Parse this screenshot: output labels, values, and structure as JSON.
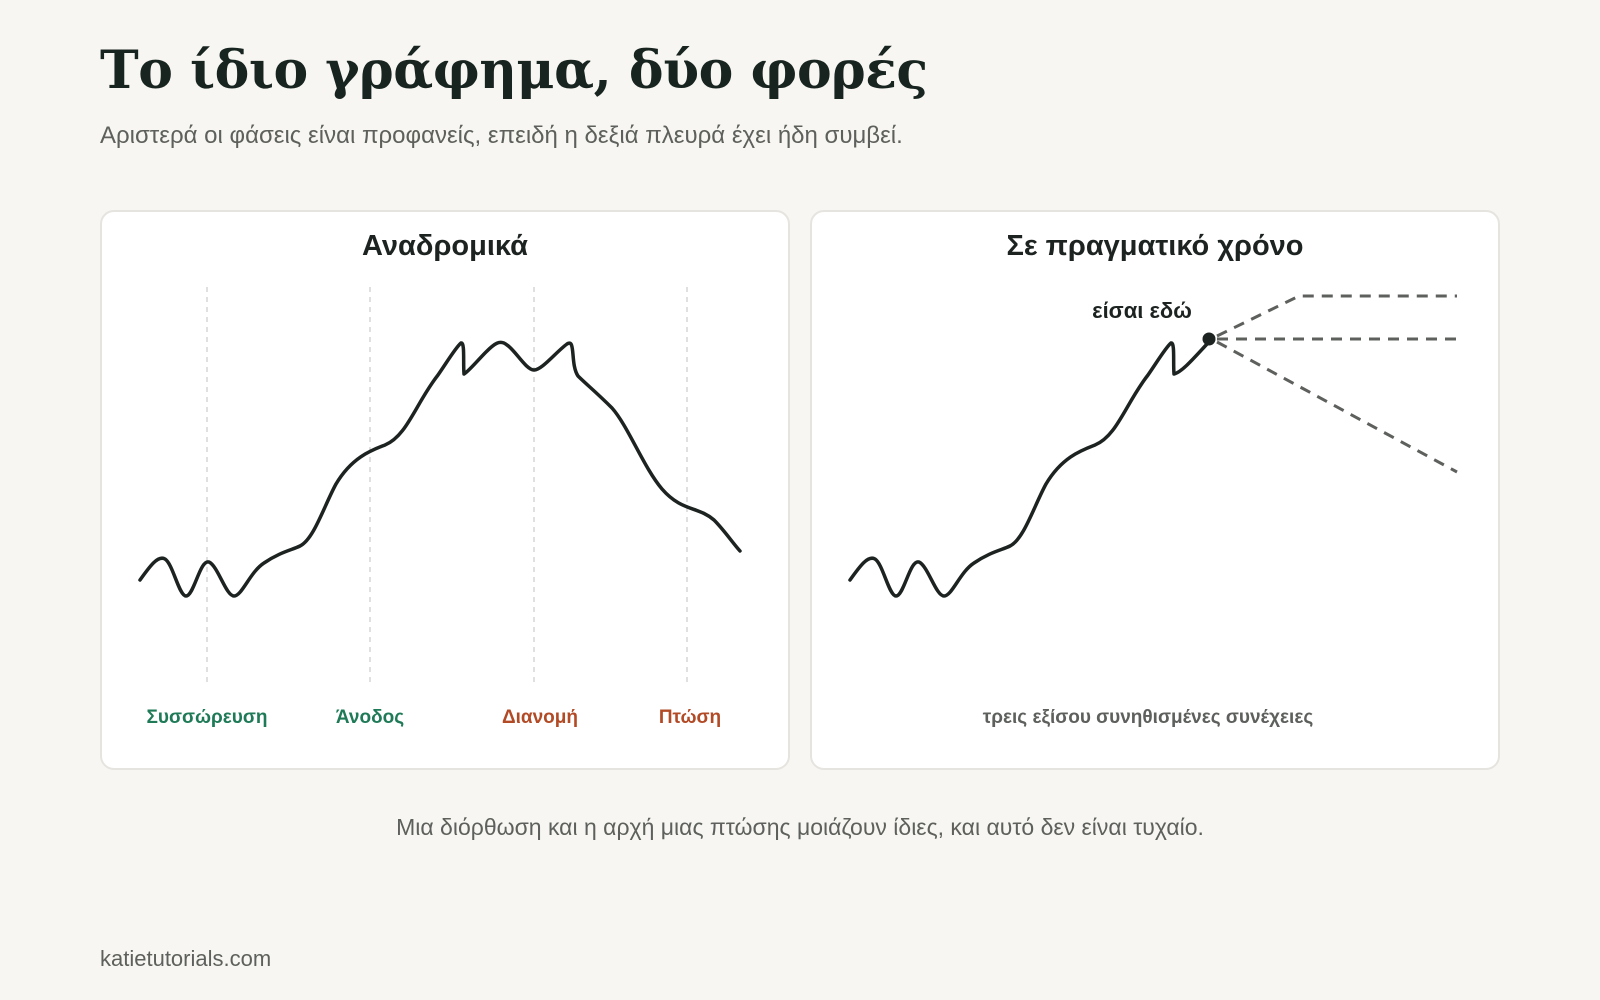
{
  "header": {
    "title": "Το ίδιο γράφημα, δύο φορές",
    "subtitle": "Αριστερά οι φάσεις είναι προφανείς, επειδή η δεξιά πλευρά έχει ήδη συμβεί."
  },
  "panels": {
    "retrospective": {
      "title": "Αναδρομικά",
      "phases": [
        {
          "label": "Συσσώρευση",
          "color": "#1e7a57"
        },
        {
          "label": "Άνοδος",
          "color": "#1e7a57"
        },
        {
          "label": "Διανομή",
          "color": "#b24a26"
        },
        {
          "label": "Πτώση",
          "color": "#b24a26"
        }
      ]
    },
    "realtime": {
      "title": "Σε πραγματικό χρόνο",
      "marker_label": "είσαι εδώ",
      "caption": "τρεις εξίσου συνηθισμένες συνέχειες"
    }
  },
  "footnote": "Μια διόρθωση και η αρχή μιας πτώσης μοιάζουν ίδιες, και αυτό δεν είναι τυχαίο.",
  "site": "katietutorials.com",
  "colors": {
    "background": "#f7f6f2",
    "line": "#1c2321",
    "scenario_line": "#5d605c",
    "green": "#1e7a57",
    "rust": "#b24a26"
  }
}
